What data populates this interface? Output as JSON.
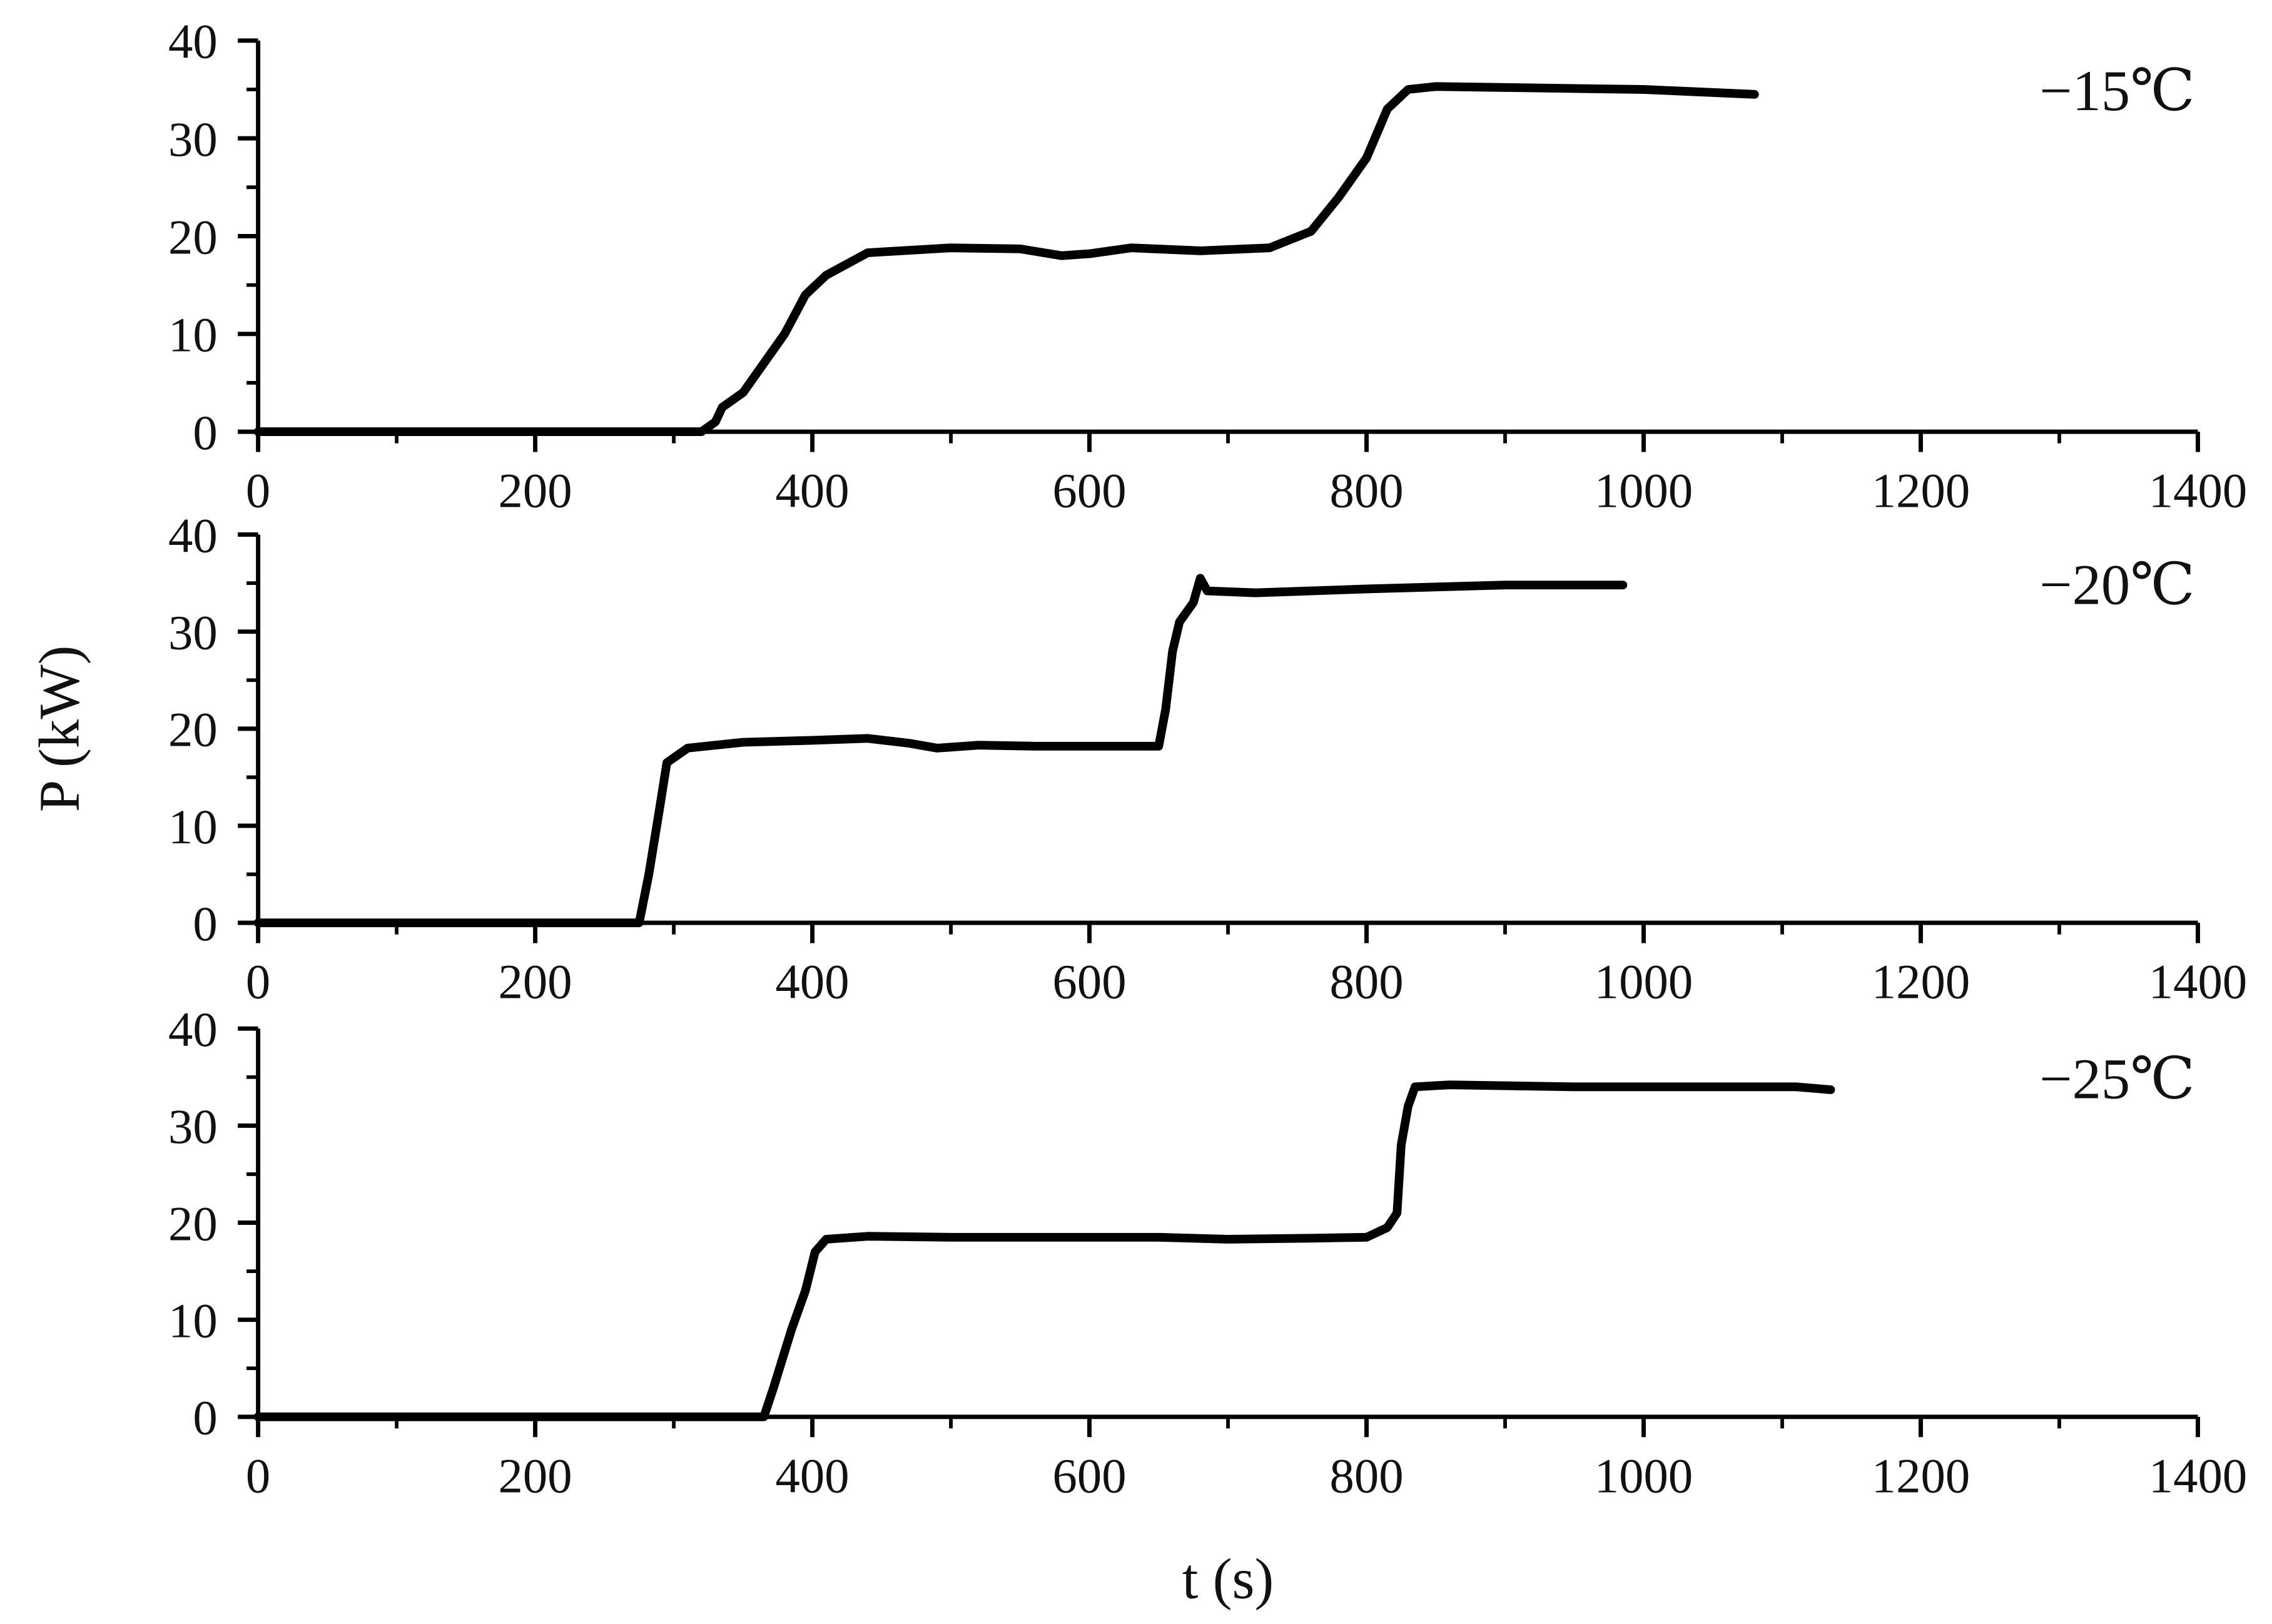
{
  "chart_data": [
    {
      "type": "line",
      "annotation": "−15℃",
      "color": "#000000",
      "x": [
        0,
        320,
        330,
        335,
        350,
        360,
        370,
        380,
        395,
        410,
        440,
        500,
        550,
        580,
        600,
        630,
        680,
        730,
        760,
        780,
        800,
        815,
        830,
        850,
        900,
        1000,
        1080
      ],
      "values": [
        0,
        0,
        1,
        2.5,
        4,
        6,
        8,
        10,
        14,
        16,
        18.3,
        18.8,
        18.7,
        18,
        18.2,
        18.8,
        18.5,
        18.8,
        20.5,
        24,
        28,
        33,
        35,
        35.3,
        35.2,
        35,
        34.5
      ],
      "xlim": [
        0,
        1400
      ],
      "xticks": [
        0,
        200,
        400,
        600,
        800,
        1000,
        1200,
        1400
      ],
      "xminor": [
        100,
        300,
        500,
        700,
        900,
        1100,
        1300
      ],
      "ylim": [
        0,
        40
      ],
      "yticks": [
        0,
        10,
        20,
        30,
        40
      ],
      "yminor": [
        5,
        15,
        25,
        35
      ]
    },
    {
      "type": "line",
      "annotation": "−20℃",
      "ylabel": "P (kW)",
      "color": "#000000",
      "x": [
        0,
        275,
        282,
        290,
        295,
        310,
        350,
        400,
        440,
        470,
        490,
        520,
        560,
        600,
        650,
        655,
        660,
        665,
        675,
        680,
        685,
        720,
        800,
        900,
        985
      ],
      "values": [
        0,
        0,
        5,
        12,
        16.5,
        18,
        18.6,
        18.8,
        19,
        18.5,
        18,
        18.3,
        18.2,
        18.2,
        18.2,
        22,
        28,
        31,
        33,
        35.5,
        34.2,
        34,
        34.4,
        34.8,
        34.8
      ],
      "xlim": [
        0,
        1400
      ],
      "xticks": [
        0,
        200,
        400,
        600,
        800,
        1000,
        1200,
        1400
      ],
      "xminor": [
        100,
        300,
        500,
        700,
        900,
        1100,
        1300
      ],
      "ylim": [
        0,
        40
      ],
      "yticks": [
        0,
        10,
        20,
        30,
        40
      ],
      "yminor": [
        5,
        15,
        25,
        35
      ]
    },
    {
      "type": "line",
      "annotation": "−25℃",
      "xlabel": "t (s)",
      "color": "#000000",
      "x": [
        0,
        365,
        372,
        385,
        395,
        402,
        410,
        440,
        500,
        600,
        650,
        700,
        760,
        800,
        815,
        822,
        825,
        830,
        835,
        860,
        950,
        1050,
        1110,
        1135
      ],
      "values": [
        0,
        0,
        3,
        9,
        13,
        17,
        18.3,
        18.6,
        18.5,
        18.5,
        18.5,
        18.3,
        18.4,
        18.5,
        19.5,
        21,
        28,
        32,
        34,
        34.2,
        34,
        34,
        34,
        33.7
      ],
      "xlim": [
        0,
        1400
      ],
      "xticks": [
        0,
        200,
        400,
        600,
        800,
        1000,
        1200,
        1400
      ],
      "xminor": [
        100,
        300,
        500,
        700,
        900,
        1100,
        1300
      ],
      "ylim": [
        0,
        40
      ],
      "yticks": [
        0,
        10,
        20,
        30,
        40
      ],
      "yminor": [
        5,
        15,
        25,
        35
      ]
    }
  ]
}
